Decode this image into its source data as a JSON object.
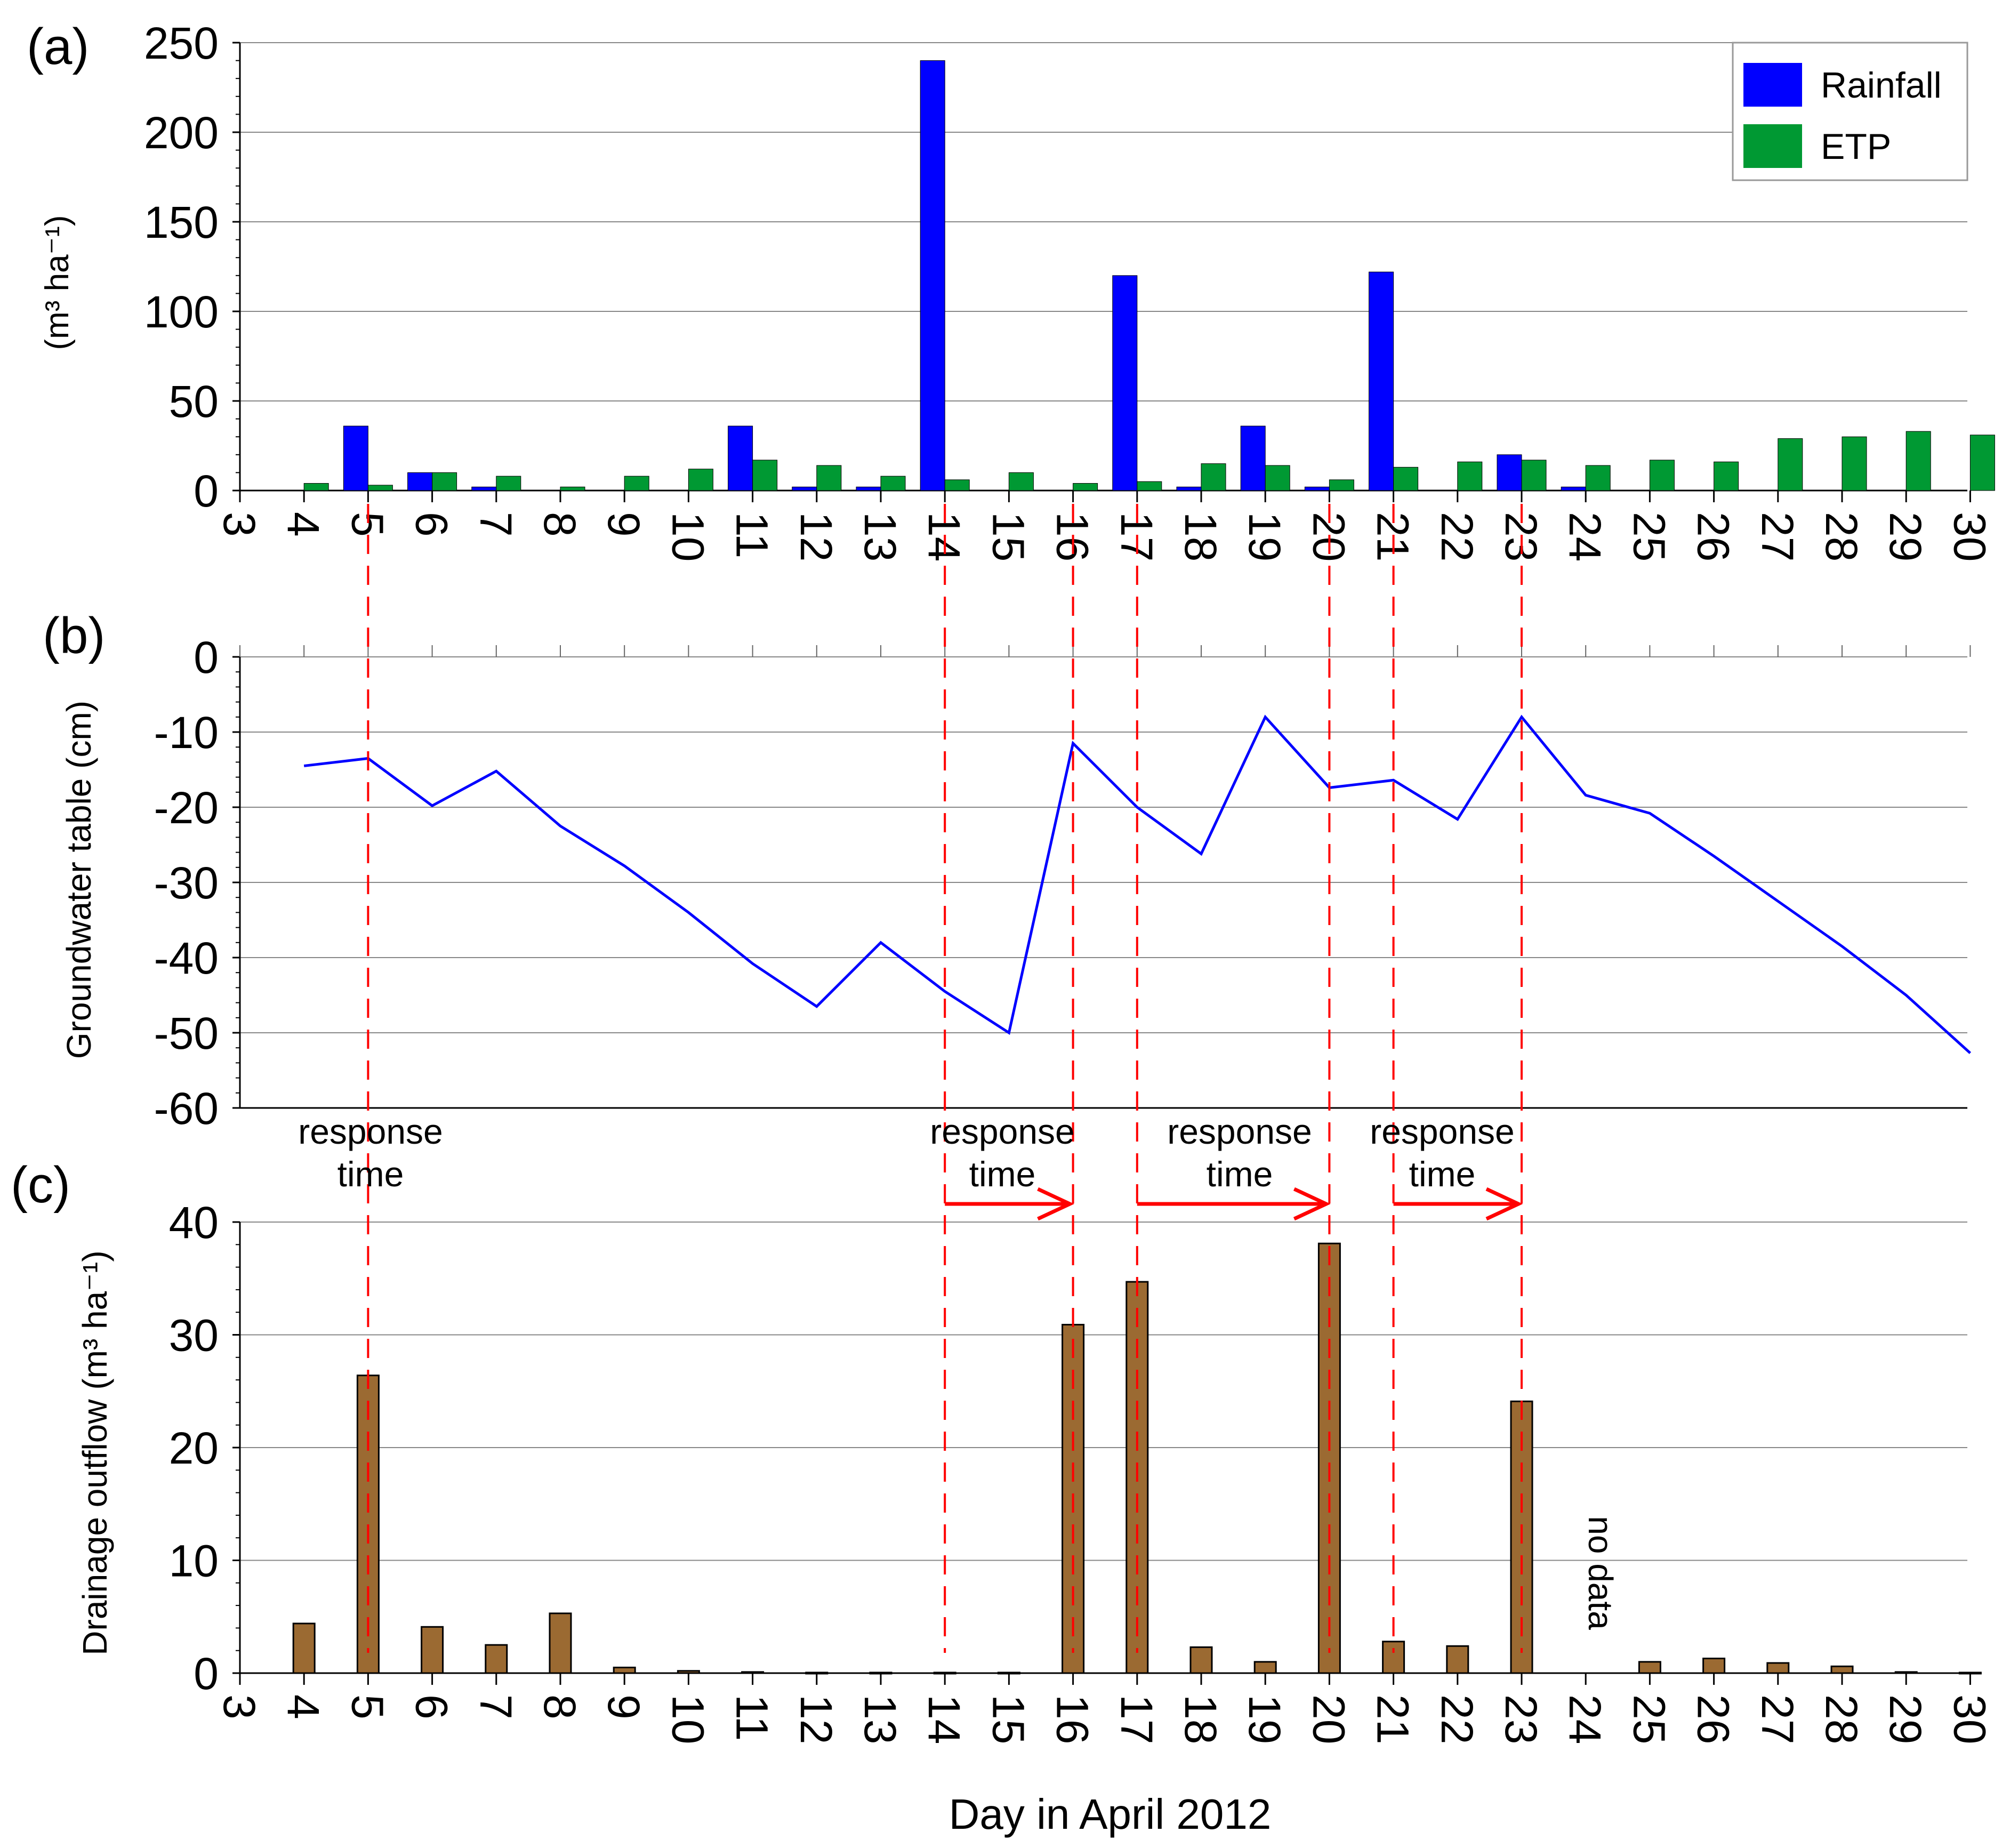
{
  "chart_data": [
    {
      "panel_label": "(a)",
      "type": "bar",
      "ylabel": "(m³ ha⁻¹)",
      "ylim": [
        0,
        250
      ],
      "yticks": [
        0,
        50,
        100,
        150,
        200,
        250
      ],
      "categories": [
        "3",
        "4",
        "5",
        "6",
        "7",
        "8",
        "9",
        "10",
        "11",
        "12",
        "13",
        "14",
        "15",
        "16",
        "17",
        "18",
        "19",
        "20",
        "21",
        "22",
        "23",
        "24",
        "25",
        "26",
        "27",
        "28",
        "29",
        "30"
      ],
      "series": [
        {
          "name": "Rainfall",
          "color": "#0000ff",
          "values": [
            0,
            0,
            36,
            10,
            2,
            0,
            0,
            0,
            36,
            2,
            2,
            240,
            0,
            0,
            120,
            2,
            36,
            2,
            122,
            0,
            20,
            2,
            0,
            0,
            0,
            0,
            0,
            0
          ]
        },
        {
          "name": "ETP",
          "color": "#009933",
          "values": [
            0,
            4,
            3,
            10,
            8,
            2,
            8,
            12,
            17,
            14,
            8,
            6,
            10,
            4,
            5,
            15,
            14,
            6,
            13,
            16,
            17,
            14,
            17,
            16,
            29,
            30,
            33,
            31
          ]
        }
      ],
      "legend_position": "top-right",
      "grid": true
    },
    {
      "panel_label": "(b)",
      "type": "line",
      "ylabel": "Groundwater table (cm)",
      "ylim": [
        -60,
        0
      ],
      "yticks": [
        0,
        -10,
        -20,
        -30,
        -40,
        -50,
        -60
      ],
      "x": [
        4,
        5,
        6,
        7,
        8,
        9,
        10,
        11,
        12,
        13,
        14,
        15,
        16,
        17,
        18,
        19,
        20,
        21,
        22,
        23,
        24,
        25,
        26,
        27,
        28,
        29,
        30
      ],
      "series": [
        {
          "name": "Groundwater table",
          "color": "#0000ff",
          "values": [
            -14.5,
            -13.5,
            -19.8,
            -15.2,
            -22.5,
            -27.8,
            -34,
            -40.8,
            -46.5,
            -38,
            -44.5,
            -50,
            -11.5,
            -20,
            -26.2,
            -8,
            -17.4,
            -16.4,
            -21.6,
            -8,
            -18.4,
            -20.8,
            -26.5,
            -32.5,
            -38.5,
            -45,
            -52.7
          ]
        }
      ],
      "grid": true
    },
    {
      "panel_label": "(c)",
      "type": "bar",
      "ylabel": "Drainage outflow (m³ ha⁻¹)",
      "xlabel": "Day in April 2012",
      "ylim": [
        0,
        40
      ],
      "yticks": [
        0,
        10,
        20,
        30,
        40
      ],
      "categories": [
        "3",
        "4",
        "5",
        "6",
        "7",
        "8",
        "9",
        "10",
        "11",
        "12",
        "13",
        "14",
        "15",
        "16",
        "17",
        "18",
        "19",
        "20",
        "21",
        "22",
        "23",
        "24",
        "25",
        "26",
        "27",
        "28",
        "29",
        "30"
      ],
      "series": [
        {
          "name": "Drainage outflow",
          "color": "#9b6a32",
          "values": [
            null,
            4.4,
            26.4,
            4.1,
            2.5,
            5.3,
            0.5,
            0.2,
            0.1,
            0.05,
            0.05,
            0.05,
            0.05,
            30.9,
            34.7,
            2.3,
            1.0,
            38.1,
            2.8,
            2.4,
            24.1,
            null,
            1.0,
            1.3,
            0.9,
            0.6,
            0.1,
            0.05
          ]
        }
      ],
      "annotations": [
        "response time",
        "no data"
      ],
      "grid": true
    }
  ],
  "annotations": {
    "response_label_1": "response",
    "response_label_2": "time",
    "no_data": "no data",
    "event_lines": [
      "5",
      "14",
      "16",
      "17",
      "20",
      "21",
      "23"
    ],
    "response_arrows": [
      [
        "14",
        "16"
      ],
      [
        "17",
        "20"
      ],
      [
        "21",
        "23"
      ]
    ]
  },
  "legend": {
    "rainfall": "Rainfall",
    "etp": "ETP"
  }
}
